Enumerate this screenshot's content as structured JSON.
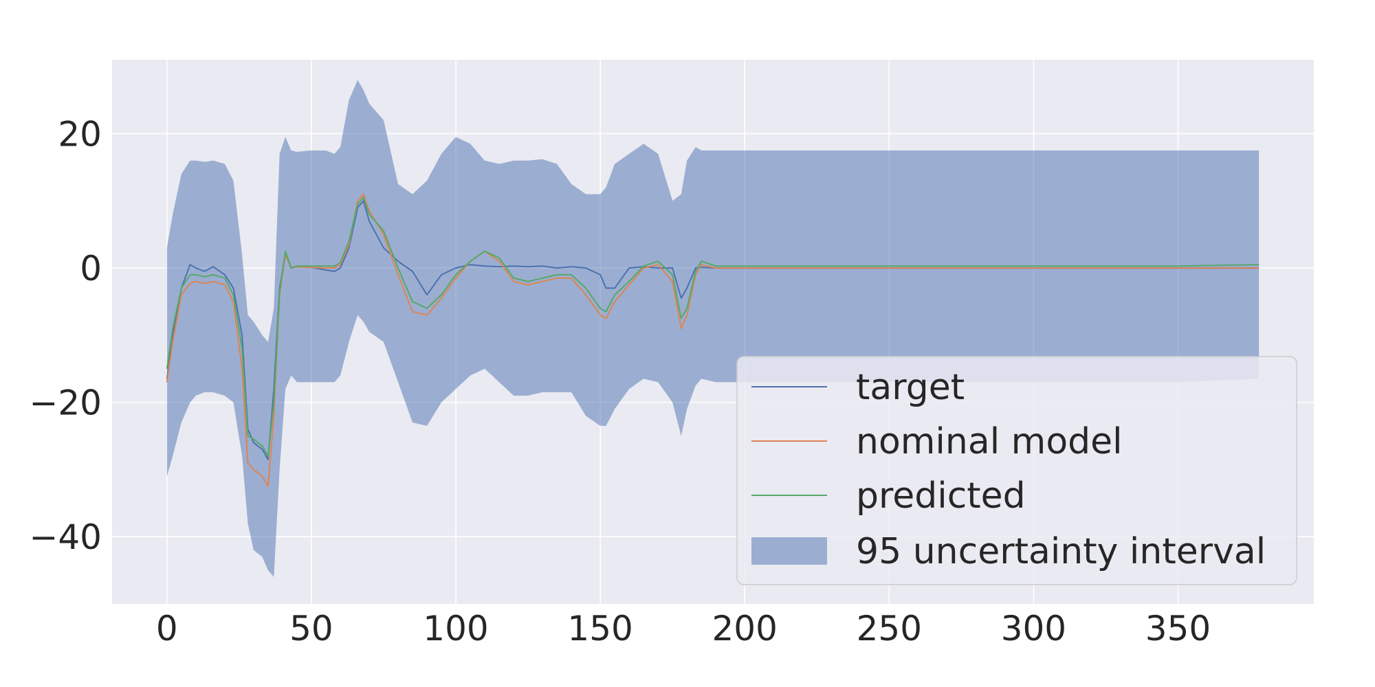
{
  "chart_data": {
    "type": "line",
    "title": "",
    "xlabel": "",
    "ylabel": "",
    "xlim": [
      -19,
      397
    ],
    "ylim": [
      -50,
      31
    ],
    "xticks": [
      0,
      50,
      100,
      150,
      200,
      250,
      300,
      350
    ],
    "yticks": [
      -40,
      -20,
      0,
      20
    ],
    "xtick_labels": [
      "0",
      "50",
      "100",
      "150",
      "200",
      "250",
      "300",
      "350"
    ],
    "ytick_labels": [
      "−40",
      "−20",
      "0",
      "20"
    ],
    "grid": true,
    "legend_position": "lower-right",
    "x": [
      0,
      2,
      5,
      8,
      10,
      13,
      16,
      20,
      23,
      26,
      28,
      30,
      33,
      35,
      37,
      39,
      41,
      43,
      45,
      50,
      55,
      58,
      60,
      63,
      66,
      68,
      70,
      75,
      80,
      85,
      90,
      95,
      100,
      105,
      110,
      115,
      120,
      125,
      130,
      135,
      140,
      145,
      150,
      152,
      155,
      160,
      165,
      170,
      175,
      178,
      180,
      183,
      185,
      190,
      200,
      250,
      300,
      350,
      378
    ],
    "series": [
      {
        "name": "target",
        "color": "#4c72b0",
        "values": [
          -16.5,
          -10,
          -3,
          0.5,
          0,
          -0.5,
          0.2,
          -1,
          -3,
          -10,
          -24,
          -26,
          -27,
          -28.5,
          -18,
          -3,
          2,
          0,
          0.2,
          0.1,
          -0.3,
          -0.5,
          0,
          3,
          9,
          10,
          7,
          3,
          1,
          -0.5,
          -4,
          -1,
          0,
          0.5,
          0.3,
          0.2,
          0.3,
          0.2,
          0.3,
          0,
          0.2,
          0,
          -1,
          -3,
          -3,
          0,
          0.2,
          0,
          0,
          -4.5,
          -3,
          0,
          0.1,
          0,
          0,
          0,
          0,
          0,
          0
        ]
      },
      {
        "name": "nominal model",
        "color": "#dd8452",
        "values": [
          -17,
          -11,
          -4,
          -2.3,
          -2,
          -2.3,
          -2,
          -2.5,
          -5,
          -15,
          -29,
          -30,
          -31,
          -32.5,
          -22,
          -4,
          2,
          0,
          0.2,
          0.1,
          0,
          0,
          0.5,
          3.5,
          10,
          11,
          8.5,
          5,
          -1,
          -6.5,
          -7,
          -4.5,
          -1.5,
          1,
          2.5,
          1,
          -2,
          -2.5,
          -2,
          -1.5,
          -1.5,
          -4,
          -7,
          -7.5,
          -5,
          -2.5,
          0,
          0.5,
          -2,
          -9,
          -7,
          -1,
          0.5,
          0,
          0,
          0,
          0,
          0,
          0
        ]
      },
      {
        "name": "predicted",
        "color": "#55a868",
        "values": [
          -15,
          -9,
          -3,
          -1,
          -1,
          -1.3,
          -1,
          -1.5,
          -4,
          -12,
          -25,
          -25.5,
          -26.5,
          -28,
          -20,
          -3.5,
          2.5,
          0,
          0.3,
          0.3,
          0.3,
          0.3,
          0.8,
          4,
          9.5,
          10.5,
          8,
          5.5,
          0,
          -5,
          -6,
          -4,
          -1,
          1,
          2.5,
          1.5,
          -1.5,
          -2,
          -1.5,
          -1,
          -1,
          -3,
          -6,
          -6.5,
          -4,
          -2,
          0.3,
          1,
          -1,
          -7.5,
          -6,
          -0.5,
          1,
          0.3,
          0.3,
          0.3,
          0.3,
          0.3,
          0.5
        ]
      }
    ],
    "band": {
      "name": "95 uncertainty interval",
      "color": "#4c72b0",
      "lower": [
        -31,
        -28,
        -23,
        -20,
        -19,
        -18.5,
        -18.5,
        -19,
        -20,
        -28,
        -38,
        -42,
        -43,
        -45,
        -46,
        -30,
        -18,
        -16,
        -17,
        -17,
        -17,
        -17,
        -16,
        -11,
        -7,
        -8,
        -9.5,
        -11,
        -17,
        -23,
        -23.5,
        -20,
        -18,
        -16,
        -15,
        -17,
        -19,
        -19,
        -18.5,
        -18.5,
        -18.5,
        -22,
        -23.5,
        -23.5,
        -21,
        -18,
        -16.5,
        -17,
        -20,
        -25,
        -21,
        -17.5,
        -16.5,
        -17,
        -17,
        -17,
        -17,
        -17,
        -16.5
      ],
      "upper": [
        3,
        8,
        14,
        16,
        16,
        15.8,
        16,
        15.5,
        13,
        2,
        -7,
        -8,
        -10,
        -11,
        -6,
        17,
        19.5,
        17.5,
        17.3,
        17.5,
        17.5,
        17,
        18,
        25,
        28,
        26.5,
        24.5,
        22,
        12.5,
        11,
        13,
        17,
        19.5,
        18.5,
        16,
        15.5,
        16,
        16,
        16.2,
        15.5,
        12.5,
        11,
        11,
        12,
        15.5,
        17,
        18.5,
        17,
        10,
        11,
        16,
        18,
        17.5,
        17.5,
        17.5,
        17.5,
        17.5,
        17.5,
        17.5
      ]
    }
  }
}
